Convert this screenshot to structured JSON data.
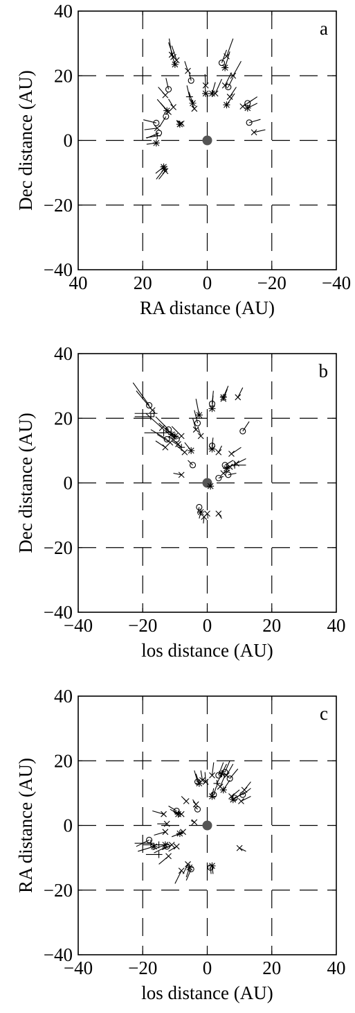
{
  "chart_data": [
    {
      "type": "scatter",
      "panel_label": "a",
      "xlabel": "RA distance (AU)",
      "ylabel": "Dec distance (AU)",
      "xlim": [
        40,
        -40
      ],
      "ylim": [
        -40,
        40
      ],
      "xticks": [
        40,
        20,
        0,
        -20,
        -40
      ],
      "yticks": [
        40,
        20,
        0,
        -20,
        -40
      ],
      "xtick_labels": [
        "40",
        "20",
        "0",
        "−20",
        "−40"
      ],
      "ytick_labels": [
        "40",
        "20",
        "0",
        "−20",
        "−40"
      ],
      "grid": true,
      "center_marker": [
        0,
        0
      ],
      "marker_legend": {
        "o": "circle",
        "x": "cross",
        "*": "asterisk",
        "+": "plus"
      },
      "points": [
        {
          "x": 15.8,
          "y": 5.4,
          "m": "o",
          "dx": 4.0,
          "dy": 1.0
        },
        {
          "x": 15.5,
          "y": 3.8,
          "m": "x",
          "dx": 4.0,
          "dy": -0.5
        },
        {
          "x": 15.0,
          "y": 2.3,
          "m": "o",
          "dx": 3.8,
          "dy": -1.6
        },
        {
          "x": 15.5,
          "y": 1.4,
          "m": "+",
          "dx": 3.5,
          "dy": -0.6
        },
        {
          "x": 15.8,
          "y": -0.8,
          "m": "*",
          "dx": 3.0,
          "dy": -0.4
        },
        {
          "x": 12.5,
          "y": 9.2,
          "m": "*",
          "dx": 3.0,
          "dy": 3.5
        },
        {
          "x": 12.0,
          "y": 8.8,
          "m": "x",
          "dx": 2.5,
          "dy": 2.8
        },
        {
          "x": 13.0,
          "y": 14.0,
          "m": "x",
          "dx": 2.2,
          "dy": 2.5
        },
        {
          "x": 10.5,
          "y": 10.3,
          "m": "x",
          "dx": 1.5,
          "dy": 2.5
        },
        {
          "x": 8.5,
          "y": 5.0,
          "m": "*",
          "dx": 1.0,
          "dy": 1.2
        },
        {
          "x": 8.0,
          "y": 5.2,
          "m": "x",
          "dx": 1.5,
          "dy": 1.0
        },
        {
          "x": 12.8,
          "y": 7.4,
          "m": "o",
          "dx": 2.0,
          "dy": -3.2
        },
        {
          "x": 13.3,
          "y": -8.8,
          "m": "*",
          "dx": 2.5,
          "dy": -3.2
        },
        {
          "x": 13.0,
          "y": -9.5,
          "m": "x",
          "dx": 2.0,
          "dy": -2.5
        },
        {
          "x": 13.5,
          "y": -8.2,
          "m": "*",
          "dx": 2.5,
          "dy": -2.0
        },
        {
          "x": 12.0,
          "y": 15.8,
          "m": "o",
          "dx": 0.8,
          "dy": 3.5
        },
        {
          "x": 10.0,
          "y": 23.5,
          "m": "*",
          "dx": 1.0,
          "dy": 3.0
        },
        {
          "x": 9.5,
          "y": 24.8,
          "m": "x",
          "dx": 1.5,
          "dy": 4.5
        },
        {
          "x": 10.5,
          "y": 25.8,
          "m": "x",
          "dx": 1.5,
          "dy": 4.5
        },
        {
          "x": 11.0,
          "y": 26.5,
          "m": "x",
          "dx": 0.8,
          "dy": 5.0
        },
        {
          "x": 6.0,
          "y": 21.5,
          "m": "x",
          "dx": 1.0,
          "dy": 3.0
        },
        {
          "x": 5.0,
          "y": 18.5,
          "m": "o",
          "dx": 0.6,
          "dy": 2.5
        },
        {
          "x": 4.5,
          "y": 11.5,
          "m": "*",
          "dx": 1.2,
          "dy": 3.5
        },
        {
          "x": 4.0,
          "y": 9.8,
          "m": "x",
          "dx": 1.2,
          "dy": 3.0
        },
        {
          "x": 5.5,
          "y": 13.5,
          "m": "+",
          "dx": 0.8,
          "dy": 3.5
        },
        {
          "x": 0.5,
          "y": 17.0,
          "m": "x",
          "dx": 0.2,
          "dy": 3.5
        },
        {
          "x": 0.5,
          "y": 14.5,
          "m": "*",
          "dx": 0.2,
          "dy": 2.5
        },
        {
          "x": -1.5,
          "y": 14.5,
          "m": "*",
          "dx": -1.0,
          "dy": 3.5
        },
        {
          "x": -2.5,
          "y": 14.5,
          "m": "x",
          "dx": -2.0,
          "dy": 4.5
        },
        {
          "x": -4.5,
          "y": 24.0,
          "m": "o",
          "dx": -1.5,
          "dy": 4.0
        },
        {
          "x": -5.5,
          "y": 22.5,
          "m": "*",
          "dx": -1.5,
          "dy": 5.0
        },
        {
          "x": -6.0,
          "y": 26.0,
          "m": "x",
          "dx": -2.0,
          "dy": 5.5
        },
        {
          "x": -5.5,
          "y": 17.0,
          "m": "x",
          "dx": -2.0,
          "dy": 4.0
        },
        {
          "x": -6.5,
          "y": 16.5,
          "m": "o",
          "dx": -1.5,
          "dy": 3.0
        },
        {
          "x": -6.0,
          "y": 11.0,
          "m": "*",
          "dx": -2.5,
          "dy": 3.5
        },
        {
          "x": -7.0,
          "y": 13.5,
          "m": "x",
          "dx": -2.0,
          "dy": 3.0
        },
        {
          "x": -8.0,
          "y": 20.0,
          "m": "x",
          "dx": -2.5,
          "dy": 4.5
        },
        {
          "x": -11.0,
          "y": 10.5,
          "m": "x",
          "dx": -3.0,
          "dy": 2.0
        },
        {
          "x": -12.5,
          "y": 11.5,
          "m": "o",
          "dx": -3.0,
          "dy": 2.0
        },
        {
          "x": -12.5,
          "y": 10.0,
          "m": "*",
          "dx": -3.0,
          "dy": 1.5
        },
        {
          "x": -13.0,
          "y": 5.5,
          "m": "o",
          "dx": -3.5,
          "dy": 1.0
        },
        {
          "x": -14.5,
          "y": 2.5,
          "m": "x",
          "dx": -3.5,
          "dy": 0.8
        }
      ]
    },
    {
      "type": "scatter",
      "panel_label": "b",
      "xlabel": "los distance (AU)",
      "ylabel": "Dec distance (AU)",
      "xlim": [
        -40,
        40
      ],
      "ylim": [
        -40,
        40
      ],
      "xticks": [
        -40,
        -20,
        0,
        20,
        40
      ],
      "yticks": [
        40,
        20,
        0,
        -20,
        -40
      ],
      "xtick_labels": [
        "−40",
        "−20",
        "0",
        "20",
        "40"
      ],
      "ytick_labels": [
        "40",
        "20",
        "0",
        "−20",
        "−40"
      ],
      "grid": true,
      "center_marker": [
        0,
        0
      ],
      "points": [
        {
          "x": -18.0,
          "y": 24.0,
          "m": "o",
          "dx": -5.0,
          "dy": 7.0
        },
        {
          "x": -17.0,
          "y": 22.5,
          "m": "x",
          "dx": -5.0,
          "dy": 6.0
        },
        {
          "x": -16.5,
          "y": 21.5,
          "m": "+",
          "dx": -6.0,
          "dy": 0.0
        },
        {
          "x": -17.5,
          "y": 20.5,
          "m": "+",
          "dx": -5.0,
          "dy": 0.0
        },
        {
          "x": -14.0,
          "y": 17.0,
          "m": "x",
          "dx": -5.0,
          "dy": 4.5
        },
        {
          "x": -13.5,
          "y": 15.5,
          "m": "+",
          "dx": -6.0,
          "dy": 0.0
        },
        {
          "x": -12.0,
          "y": 16.5,
          "m": "o",
          "dx": -4.0,
          "dy": 4.0
        },
        {
          "x": -11.0,
          "y": 15.0,
          "m": "*",
          "dx": -4.0,
          "dy": 3.5
        },
        {
          "x": -12.5,
          "y": 13.5,
          "m": "o",
          "dx": -5.0,
          "dy": 3.0
        },
        {
          "x": -11.5,
          "y": 12.5,
          "m": "x",
          "dx": -4.0,
          "dy": 2.5
        },
        {
          "x": -13.0,
          "y": 11.0,
          "m": "x",
          "dx": -3.0,
          "dy": 2.0
        },
        {
          "x": -10.0,
          "y": 14.5,
          "m": "*",
          "dx": -3.0,
          "dy": 2.5
        },
        {
          "x": -9.5,
          "y": 13.5,
          "m": "o",
          "dx": -3.5,
          "dy": 2.5
        },
        {
          "x": -9.0,
          "y": 12.0,
          "m": "x",
          "dx": -3.0,
          "dy": 2.5
        },
        {
          "x": -8.0,
          "y": 11.0,
          "m": "+",
          "dx": -3.0,
          "dy": 2.0
        },
        {
          "x": -7.0,
          "y": 9.5,
          "m": "x",
          "dx": -2.5,
          "dy": 2.0
        },
        {
          "x": -5.0,
          "y": 10.0,
          "m": "*",
          "dx": -2.0,
          "dy": 2.5
        },
        {
          "x": -8.0,
          "y": 14.5,
          "m": "x",
          "dx": -3.0,
          "dy": 3.0
        },
        {
          "x": -8.0,
          "y": 2.5,
          "m": "x",
          "dx": -2.5,
          "dy": 0.5
        },
        {
          "x": -4.5,
          "y": 5.5,
          "m": "o",
          "dx": -1.5,
          "dy": 1.5
        },
        {
          "x": -3.0,
          "y": 18.5,
          "m": "o",
          "dx": -1.0,
          "dy": 4.0
        },
        {
          "x": -3.5,
          "y": 16.5,
          "m": "x",
          "dx": -1.0,
          "dy": 3.5
        },
        {
          "x": -2.5,
          "y": 21.0,
          "m": "*",
          "dx": -1.0,
          "dy": 5.0
        },
        {
          "x": -2.0,
          "y": 14.5,
          "m": "x",
          "dx": -0.8,
          "dy": 2.5
        },
        {
          "x": 1.5,
          "y": 24.5,
          "m": "o",
          "dx": 0.4,
          "dy": 4.0
        },
        {
          "x": 1.5,
          "y": 23.0,
          "m": "*",
          "dx": 0.3,
          "dy": 4.0
        },
        {
          "x": 5.0,
          "y": 26.5,
          "m": "*",
          "dx": 1.5,
          "dy": 3.5
        },
        {
          "x": 5.0,
          "y": 26.0,
          "m": "x",
          "dx": 1.2,
          "dy": 3.0
        },
        {
          "x": 9.5,
          "y": 26.5,
          "m": "x",
          "dx": 1.5,
          "dy": 3.0
        },
        {
          "x": 1.5,
          "y": 11.5,
          "m": "o",
          "dx": 0.3,
          "dy": 2.5
        },
        {
          "x": 1.5,
          "y": 10.5,
          "m": "*",
          "dx": 0.2,
          "dy": 2.0
        },
        {
          "x": 3.5,
          "y": 9.5,
          "m": "x",
          "dx": 1.0,
          "dy": 2.0
        },
        {
          "x": 11.0,
          "y": 16.0,
          "m": "o",
          "dx": 2.0,
          "dy": 3.0
        },
        {
          "x": 5.5,
          "y": 5.5,
          "m": "o",
          "dx": 2.5,
          "dy": 1.5
        },
        {
          "x": 6.0,
          "y": 4.5,
          "m": "*",
          "dx": 3.0,
          "dy": 1.5
        },
        {
          "x": 7.0,
          "y": 5.0,
          "m": "x",
          "dx": 3.0,
          "dy": 1.5
        },
        {
          "x": 8.5,
          "y": 5.5,
          "m": "+",
          "dx": 3.5,
          "dy": 0.0
        },
        {
          "x": 9.0,
          "y": 6.0,
          "m": "x",
          "dx": 3.0,
          "dy": 1.5
        },
        {
          "x": 7.5,
          "y": 9.0,
          "m": "x",
          "dx": 3.0,
          "dy": 2.0
        },
        {
          "x": 3.5,
          "y": 1.5,
          "m": "o",
          "dx": 1.5,
          "dy": 0.5
        },
        {
          "x": 5.0,
          "y": 3.0,
          "m": "x",
          "dx": 2.0,
          "dy": 1.0
        },
        {
          "x": 6.5,
          "y": 2.5,
          "m": "o",
          "dx": 2.5,
          "dy": 0.5
        },
        {
          "x": 1.0,
          "y": -1.0,
          "m": "*",
          "dx": 0.5,
          "dy": -0.5
        },
        {
          "x": -2.5,
          "y": -7.5,
          "m": "o",
          "dx": -0.5,
          "dy": -2.0
        },
        {
          "x": -2.0,
          "y": -9.0,
          "m": "*",
          "dx": -0.5,
          "dy": -2.0
        },
        {
          "x": -1.0,
          "y": -10.5,
          "m": "x",
          "dx": -0.2,
          "dy": -2.0
        },
        {
          "x": 0.0,
          "y": -9.5,
          "m": "x",
          "dx": 0.2,
          "dy": -1.5
        },
        {
          "x": 3.5,
          "y": -9.5,
          "m": "x",
          "dx": 1.0,
          "dy": -1.5
        }
      ]
    },
    {
      "type": "scatter",
      "panel_label": "c",
      "xlabel": "los distance (AU)",
      "ylabel": "RA distance (AU)",
      "xlim": [
        -40,
        40
      ],
      "ylim": [
        -40,
        40
      ],
      "xticks": [
        -40,
        -20,
        0,
        20,
        40
      ],
      "yticks": [
        40,
        20,
        0,
        -20,
        -40
      ],
      "xtick_labels": [
        "−40",
        "−20",
        "0",
        "20",
        "40"
      ],
      "ytick_labels": [
        "40",
        "20",
        "0",
        "−20",
        "−40"
      ],
      "grid": true,
      "center_marker": [
        0,
        0
      ],
      "points": [
        {
          "x": -18.0,
          "y": -4.5,
          "m": "o",
          "dx": -4.0,
          "dy": -2.0
        },
        {
          "x": -17.5,
          "y": -5.5,
          "m": "+",
          "dx": -5.0,
          "dy": 0.0
        },
        {
          "x": -16.5,
          "y": -6.5,
          "m": "*",
          "dx": -5.0,
          "dy": -1.5
        },
        {
          "x": -15.0,
          "y": -6.0,
          "m": "+",
          "dx": -5.0,
          "dy": 0.0
        },
        {
          "x": -13.0,
          "y": -6.0,
          "m": "*",
          "dx": -4.0,
          "dy": -1.5
        },
        {
          "x": -12.5,
          "y": -6.5,
          "m": "o",
          "dx": -4.0,
          "dy": -2.0
        },
        {
          "x": -11.0,
          "y": -6.0,
          "m": "x",
          "dx": -3.0,
          "dy": -1.5
        },
        {
          "x": -12.0,
          "y": -9.5,
          "m": "x",
          "dx": -3.0,
          "dy": -2.5
        },
        {
          "x": -15.0,
          "y": -9.0,
          "m": "+",
          "dx": -4.0,
          "dy": 0.0
        },
        {
          "x": -13.0,
          "y": -2.0,
          "m": "x",
          "dx": -3.5,
          "dy": -1.0
        },
        {
          "x": -13.5,
          "y": 3.5,
          "m": "x",
          "dx": -3.5,
          "dy": 1.0
        },
        {
          "x": -12.5,
          "y": 0.5,
          "m": "x",
          "dx": -3.0,
          "dy": 0.0
        },
        {
          "x": -9.5,
          "y": 4.5,
          "m": "o",
          "dx": -2.5,
          "dy": 1.5
        },
        {
          "x": -9.0,
          "y": 3.5,
          "m": "*",
          "dx": -2.5,
          "dy": 1.5
        },
        {
          "x": -8.0,
          "y": 3.5,
          "m": "x",
          "dx": -2.5,
          "dy": 1.0
        },
        {
          "x": -7.5,
          "y": -2.0,
          "m": "x",
          "dx": -2.0,
          "dy": -1.0
        },
        {
          "x": -8.5,
          "y": -2.5,
          "m": "*",
          "dx": -2.5,
          "dy": -1.0
        },
        {
          "x": -9.5,
          "y": -6.5,
          "m": "x",
          "dx": -2.5,
          "dy": -1.5
        },
        {
          "x": -8.0,
          "y": -14.0,
          "m": "x",
          "dx": -2.0,
          "dy": -4.0
        },
        {
          "x": -5.5,
          "y": -13.0,
          "m": "*",
          "dx": -1.0,
          "dy": -3.0
        },
        {
          "x": -5.0,
          "y": -13.5,
          "m": "o",
          "dx": -1.5,
          "dy": -3.5
        },
        {
          "x": -6.0,
          "y": -12.0,
          "m": "x",
          "dx": -1.5,
          "dy": -3.0
        },
        {
          "x": -6.5,
          "y": 7.5,
          "m": "x",
          "dx": -1.5,
          "dy": 1.5
        },
        {
          "x": -4.0,
          "y": 1.0,
          "m": "x",
          "dx": -1.0,
          "dy": 0.5
        },
        {
          "x": -3.0,
          "y": 5.0,
          "m": "o",
          "dx": -1.0,
          "dy": 1.0
        },
        {
          "x": -3.5,
          "y": 6.5,
          "m": "x",
          "dx": -1.0,
          "dy": 1.5
        },
        {
          "x": -3.0,
          "y": 13.5,
          "m": "o",
          "dx": -1.0,
          "dy": 3.5
        },
        {
          "x": -2.5,
          "y": 13.0,
          "m": "*",
          "dx": -1.0,
          "dy": 3.0
        },
        {
          "x": -1.5,
          "y": 14.0,
          "m": "x",
          "dx": -0.5,
          "dy": 3.0
        },
        {
          "x": -0.5,
          "y": 13.5,
          "m": "x",
          "dx": -0.2,
          "dy": 3.0
        },
        {
          "x": 1.5,
          "y": 15.5,
          "m": "x",
          "dx": 0.5,
          "dy": 4.0
        },
        {
          "x": 3.5,
          "y": 15.5,
          "m": "o",
          "dx": 1.5,
          "dy": 4.0
        },
        {
          "x": 4.5,
          "y": 16.0,
          "m": "*",
          "dx": 1.5,
          "dy": 3.0
        },
        {
          "x": 5.5,
          "y": 16.5,
          "m": "o",
          "dx": 1.5,
          "dy": 3.5
        },
        {
          "x": 6.0,
          "y": 15.5,
          "m": "x",
          "dx": 2.0,
          "dy": 3.5
        },
        {
          "x": 7.0,
          "y": 14.5,
          "m": "o",
          "dx": 2.5,
          "dy": 3.0
        },
        {
          "x": 3.0,
          "y": 13.0,
          "m": "+",
          "dx": 1.5,
          "dy": 3.0
        },
        {
          "x": 4.0,
          "y": 12.0,
          "m": "x",
          "dx": 1.5,
          "dy": 3.5
        },
        {
          "x": 5.0,
          "y": 11.0,
          "m": "*",
          "dx": 2.0,
          "dy": 3.0
        },
        {
          "x": 2.0,
          "y": 9.5,
          "m": "o",
          "dx": 0.8,
          "dy": 2.5
        },
        {
          "x": 1.5,
          "y": 9.0,
          "m": "*",
          "dx": 0.5,
          "dy": 2.5
        },
        {
          "x": 7.5,
          "y": 9.0,
          "m": "x",
          "dx": 2.5,
          "dy": 2.0
        },
        {
          "x": 8.0,
          "y": 8.0,
          "m": "*",
          "dx": 3.0,
          "dy": 2.0
        },
        {
          "x": 8.5,
          "y": 8.5,
          "m": "o",
          "dx": 3.0,
          "dy": 1.5
        },
        {
          "x": 11.0,
          "y": 9.5,
          "m": "o",
          "dx": 2.5,
          "dy": 2.0
        },
        {
          "x": 11.5,
          "y": 11.0,
          "m": "x",
          "dx": 2.0,
          "dy": 2.5
        },
        {
          "x": 10.5,
          "y": 7.5,
          "m": "x",
          "dx": 3.0,
          "dy": 1.5
        },
        {
          "x": 10.0,
          "y": -7.0,
          "m": "x",
          "dx": 2.0,
          "dy": -1.0
        },
        {
          "x": 1.5,
          "y": -12.5,
          "m": "*",
          "dx": 0.3,
          "dy": -2.5
        },
        {
          "x": 1.0,
          "y": -13.0,
          "m": "o",
          "dx": 0.2,
          "dy": -2.0
        }
      ]
    }
  ]
}
